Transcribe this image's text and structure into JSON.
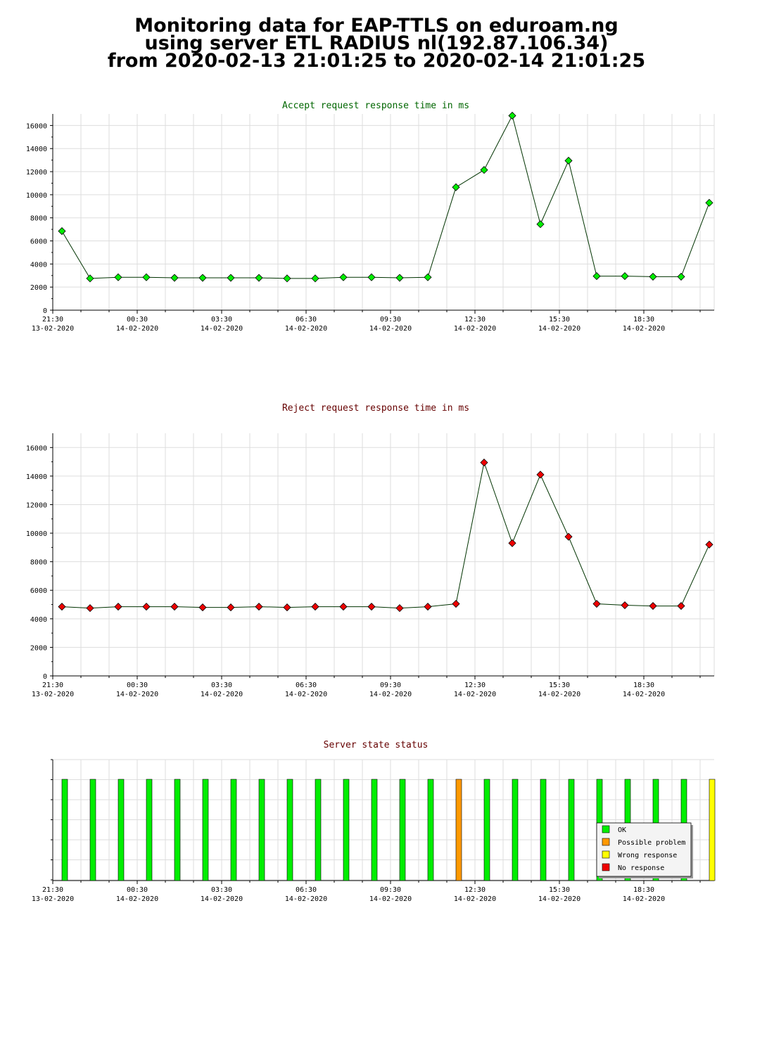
{
  "header": {
    "line1": "Monitoring data for EAP-TTLS on eduroam.ng",
    "line2": "using server ETL RADIUS nl(192.87.106.34)",
    "line3": "from 2020-02-13 21:01:25 to 2020-02-14 21:01:25"
  },
  "colors": {
    "accept_title": "#006600",
    "reject_title": "#660000",
    "status_title": "#660000",
    "accept_marker": "#00ee00",
    "reject_marker": "#ee0000",
    "ok": "#00ee00",
    "possible_problem": "#ff9900",
    "wrong_response": "#ffff00",
    "no_response": "#ee0000",
    "grid": "#dddddd"
  },
  "chart_data": [
    {
      "type": "line",
      "title": "Accept request response time in ms",
      "ylim": [
        0,
        17000
      ],
      "y_ticks": [
        0,
        2000,
        4000,
        6000,
        8000,
        10000,
        12000,
        14000,
        16000
      ],
      "x_tick_labels": [
        {
          "time": "21:30",
          "date": "13-02-2020"
        },
        {
          "time": "00:30",
          "date": "14-02-2020"
        },
        {
          "time": "03:30",
          "date": "14-02-2020"
        },
        {
          "time": "06:30",
          "date": "14-02-2020"
        },
        {
          "time": "09:30",
          "date": "14-02-2020"
        },
        {
          "time": "12:30",
          "date": "14-02-2020"
        },
        {
          "time": "15:30",
          "date": "14-02-2020"
        },
        {
          "time": "18:30",
          "date": "14-02-2020"
        }
      ],
      "grid": true,
      "series": [
        {
          "values": [
            6850,
            2750,
            2850,
            2850,
            2800,
            2800,
            2800,
            2800,
            2750,
            2750,
            2850,
            2850,
            2800,
            2850,
            10650,
            12150,
            16850,
            7450,
            12950,
            2950,
            2950,
            2900,
            2900,
            9300
          ]
        }
      ]
    },
    {
      "type": "line",
      "title": "Reject request response time in ms",
      "ylim": [
        0,
        17000
      ],
      "y_ticks": [
        0,
        2000,
        4000,
        6000,
        8000,
        10000,
        12000,
        14000,
        16000
      ],
      "x_tick_labels": [
        {
          "time": "21:30",
          "date": "13-02-2020"
        },
        {
          "time": "00:30",
          "date": "14-02-2020"
        },
        {
          "time": "03:30",
          "date": "14-02-2020"
        },
        {
          "time": "06:30",
          "date": "14-02-2020"
        },
        {
          "time": "09:30",
          "date": "14-02-2020"
        },
        {
          "time": "12:30",
          "date": "14-02-2020"
        },
        {
          "time": "15:30",
          "date": "14-02-2020"
        },
        {
          "time": "18:30",
          "date": "14-02-2020"
        }
      ],
      "grid": true,
      "series": [
        {
          "values": [
            4850,
            4750,
            4850,
            4850,
            4850,
            4800,
            4800,
            4850,
            4800,
            4850,
            4850,
            4850,
            4750,
            4850,
            5050,
            14950,
            9300,
            14100,
            9750,
            5050,
            4950,
            4900,
            4900,
            9200
          ]
        }
      ]
    },
    {
      "type": "bar",
      "title": "Server state status",
      "x_tick_labels": [
        {
          "time": "21:30",
          "date": "13-02-2020"
        },
        {
          "time": "00:30",
          "date": "14-02-2020"
        },
        {
          "time": "03:30",
          "date": "14-02-2020"
        },
        {
          "time": "06:30",
          "date": "14-02-2020"
        },
        {
          "time": "09:30",
          "date": "14-02-2020"
        },
        {
          "time": "12:30",
          "date": "14-02-2020"
        },
        {
          "time": "15:30",
          "date": "14-02-2020"
        },
        {
          "time": "18:30",
          "date": "14-02-2020"
        }
      ],
      "states": [
        "ok",
        "ok",
        "ok",
        "ok",
        "ok",
        "ok",
        "ok",
        "ok",
        "ok",
        "ok",
        "ok",
        "ok",
        "ok",
        "ok",
        "possible_problem",
        "ok",
        "ok",
        "ok",
        "ok",
        "ok",
        "ok",
        "ok",
        "ok",
        "wrong_response"
      ],
      "legend": [
        {
          "key": "ok",
          "label": "OK"
        },
        {
          "key": "possible_problem",
          "label": "Possible problem"
        },
        {
          "key": "wrong_response",
          "label": "Wrong response"
        },
        {
          "key": "no_response",
          "label": "No response"
        }
      ],
      "legend_position": "bottom-right",
      "grid": true
    }
  ]
}
